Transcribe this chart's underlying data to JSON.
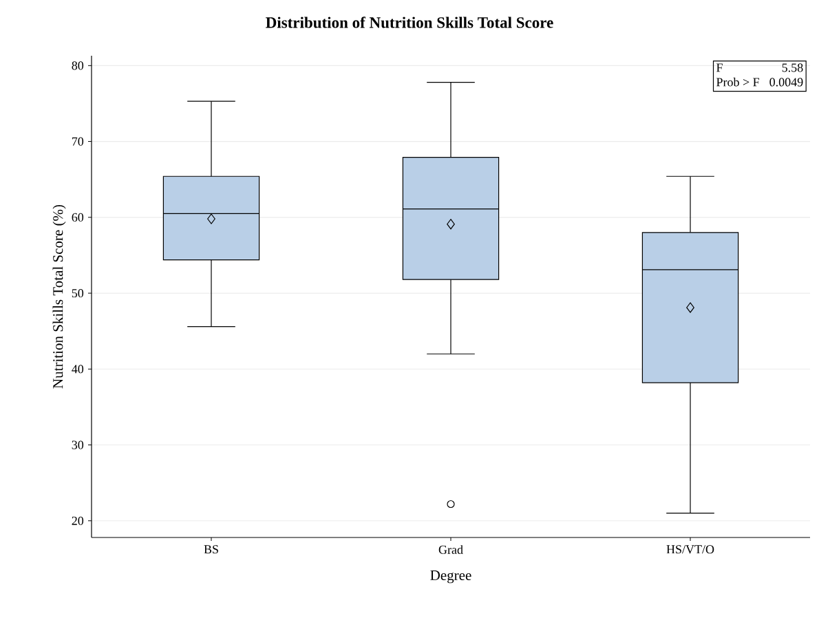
{
  "chart_data": {
    "type": "box",
    "title": "Distribution of Nutrition Skills Total Score",
    "xlabel": "Degree",
    "ylabel": "Nutrition Skills Total Score (%)",
    "categories": [
      "BS",
      "Grad",
      "HS/VT/O"
    ],
    "color": "#b9cfe7",
    "boxes": [
      {
        "low": 45.6,
        "q1": 54.4,
        "median": 60.5,
        "q3": 65.4,
        "high": 75.3,
        "mean": 59.8
      },
      {
        "low": 42.0,
        "q1": 51.8,
        "median": 61.1,
        "q3": 67.9,
        "high": 77.8,
        "mean": 59.1,
        "outliers": [
          22.2
        ]
      },
      {
        "low": 21.0,
        "q1": 38.2,
        "median": 53.1,
        "q3": 58.0,
        "high": 65.4,
        "mean": 48.1
      }
    ],
    "ylim": [
      17.8,
      81.3
    ],
    "yticks": [
      20,
      30,
      40,
      50,
      60,
      70,
      80
    ],
    "grid": "y",
    "annotations": [
      "F",
      "5.58",
      "Prob > F",
      "0.0049"
    ]
  }
}
